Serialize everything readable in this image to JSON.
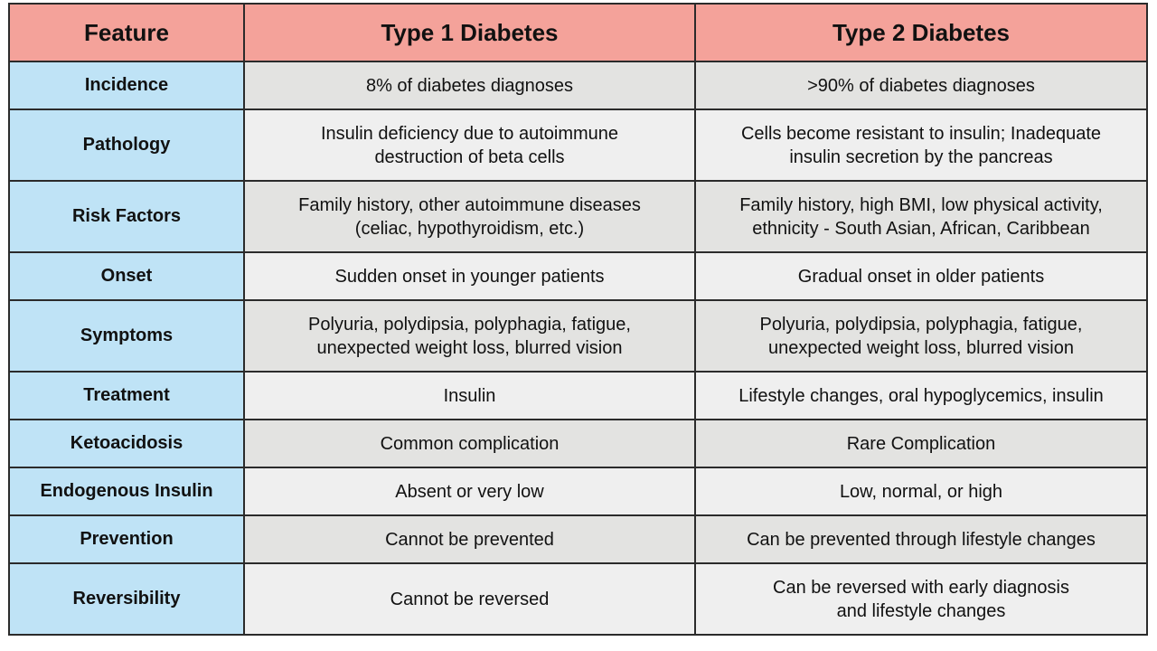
{
  "header": {
    "feature": "Feature",
    "type1": "Type 1 Diabetes",
    "type2": "Type 2 Diabetes"
  },
  "rows": [
    {
      "feature": "Incidence",
      "type1": "8% of diabetes diagnoses",
      "type2": ">90% of diabetes diagnoses"
    },
    {
      "feature": "Pathology",
      "type1": "Insulin deficiency due to autoimmune\ndestruction of beta cells",
      "type2": "Cells become resistant to insulin; Inadequate\ninsulin secretion by the pancreas"
    },
    {
      "feature": "Risk Factors",
      "type1": "Family history, other autoimmune diseases\n(celiac, hypothyroidism, etc.)",
      "type2": "Family history, high BMI, low physical activity,\nethnicity - South Asian, African, Caribbean"
    },
    {
      "feature": "Onset",
      "type1": "Sudden onset in younger patients",
      "type2": "Gradual onset in older patients"
    },
    {
      "feature": "Symptoms",
      "type1": "Polyuria, polydipsia, polyphagia, fatigue,\nunexpected weight loss, blurred vision",
      "type2": "Polyuria, polydipsia, polyphagia, fatigue,\nunexpected weight loss, blurred vision"
    },
    {
      "feature": "Treatment",
      "type1": "Insulin",
      "type2": "Lifestyle changes, oral hypoglycemics, insulin"
    },
    {
      "feature": "Ketoacidosis",
      "type1": "Common complication",
      "type2": "Rare Complication"
    },
    {
      "feature": "Endogenous Insulin",
      "type1": "Absent or very low",
      "type2": "Low, normal, or high"
    },
    {
      "feature": "Prevention",
      "type1": "Cannot be prevented",
      "type2": "Can be prevented through lifestyle changes"
    },
    {
      "feature": "Reversibility",
      "type1": "Cannot be reversed",
      "type2": "Can be reversed with early diagnosis\nand lifestyle changes"
    }
  ],
  "colors": {
    "header_bg": "#f4a29a",
    "feature_col_bg": "#bfe3f6",
    "row_shade_bg": "#e3e3e1",
    "row_plain_bg": "#efefef",
    "border": "#2b2b2b"
  }
}
